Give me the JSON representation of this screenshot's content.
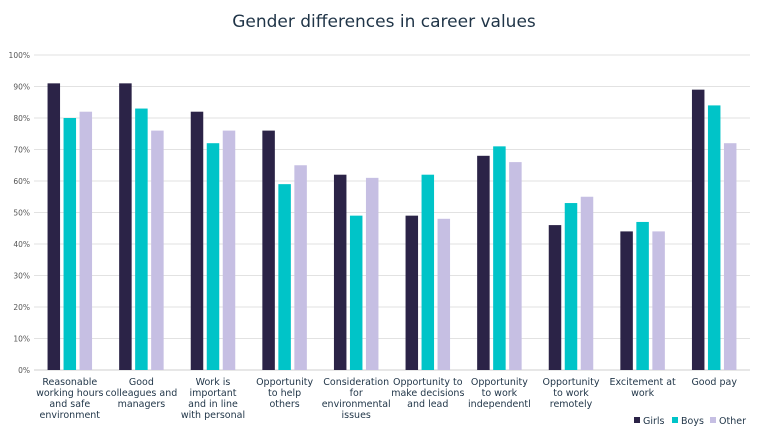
{
  "chart_data": {
    "type": "bar",
    "title": "Gender differences in career values",
    "xlabel": "",
    "ylabel": "",
    "ylim": [
      0,
      100
    ],
    "yticks": [
      "0%",
      "10%",
      "20%",
      "30%",
      "40%",
      "50%",
      "60%",
      "70%",
      "80%",
      "90%",
      "100%"
    ],
    "grid": true,
    "legend_position": "bottom-right",
    "categories": [
      [
        "Reasonable",
        "working hours",
        "and safe",
        "environment"
      ],
      [
        "Good",
        "colleagues and",
        "managers"
      ],
      [
        "Work is",
        "important",
        "and in line",
        "with personal"
      ],
      [
        "Opportunity",
        "to help",
        "others"
      ],
      [
        "Consideration",
        "for",
        "environmental",
        "issues"
      ],
      [
        "Opportunity to",
        "make decisions",
        "and lead"
      ],
      [
        "Opportunity",
        "to work",
        "independentl"
      ],
      [
        "Opportunity",
        "to work",
        "remotely"
      ],
      [
        "Excitement at",
        "work"
      ],
      [
        "Good pay"
      ]
    ],
    "series": [
      {
        "name": "Girls",
        "color": "#2b2347",
        "values": [
          91,
          91,
          82,
          76,
          62,
          49,
          68,
          46,
          44,
          89
        ]
      },
      {
        "name": "Boys",
        "color": "#00c4c8",
        "values": [
          80,
          83,
          72,
          59,
          49,
          62,
          71,
          53,
          47,
          84
        ]
      },
      {
        "name": "Other",
        "color": "#c6bfe3",
        "values": [
          82,
          76,
          76,
          65,
          61,
          48,
          66,
          55,
          44,
          72
        ]
      }
    ]
  }
}
